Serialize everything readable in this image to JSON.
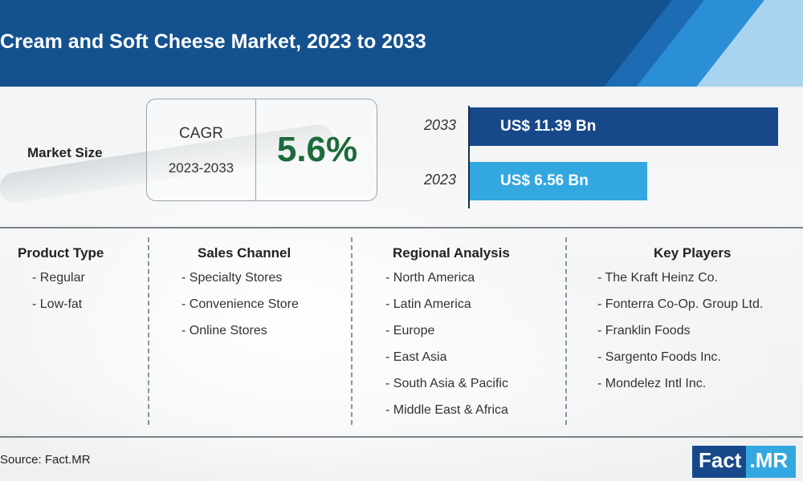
{
  "title": "Cream and Soft Cheese Market, 2023 to 2033",
  "market_size": {
    "label": "Market Size",
    "cagr_label": "CAGR",
    "cagr_period": "2023-2033",
    "cagr_value": "5.6%"
  },
  "chart_data": {
    "type": "bar",
    "orientation": "horizontal",
    "categories": [
      "2033",
      "2023"
    ],
    "values": [
      11.39,
      6.56
    ],
    "value_labels": [
      "US$ 11.39 Bn",
      "US$ 6.56 Bn"
    ],
    "colors": [
      "#17498a",
      "#33a7e0"
    ]
  },
  "segments": [
    {
      "heading": "Product Type",
      "items": [
        "- Regular",
        "- Low-fat"
      ]
    },
    {
      "heading": "Sales Channel",
      "items": [
        "- Specialty Stores",
        "- Convenience Store",
        "- Online Stores"
      ]
    },
    {
      "heading": "Regional Analysis",
      "items": [
        "- North America",
        "- Latin America",
        "- Europe",
        "- East Asia",
        "- South Asia & Pacific",
        "- Middle East & Africa"
      ]
    },
    {
      "heading": "Key Players",
      "items": [
        "- The Kraft Heinz Co.",
        "- Fonterra Co-Op. Group Ltd.",
        "- Franklin Foods",
        "- Sargento Foods Inc.",
        "- Mondelez Intl Inc."
      ]
    }
  ],
  "source": "Source: Fact.MR",
  "logo": {
    "part1": "Fact",
    "part2": ".MR"
  }
}
